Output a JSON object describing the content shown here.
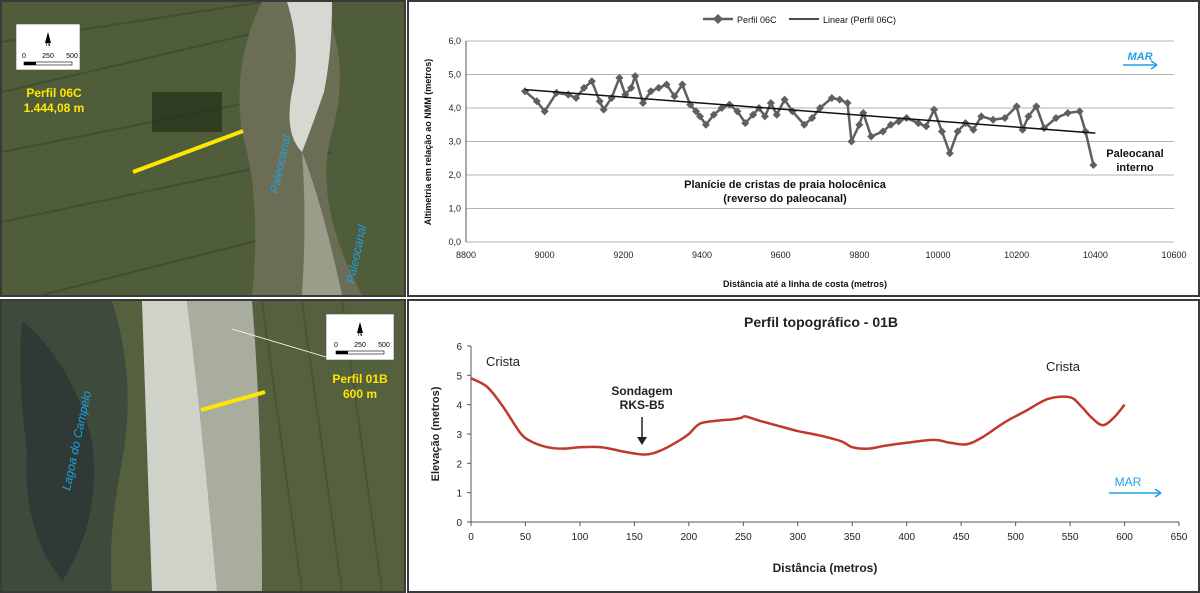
{
  "maps": {
    "top": {
      "scale": {
        "north": "N",
        "t0": "0",
        "t1": "250",
        "t2": "500"
      },
      "profile_label": "Perfil 06C",
      "profile_length": "1.444,08 m",
      "water_labels": [
        "Paleocanal",
        "Paleocanal"
      ]
    },
    "bottom": {
      "scale": {
        "north": "N",
        "t0": "0",
        "t1": "250",
        "t2": "500"
      },
      "profile_label": "Perfil 01B",
      "profile_length": "600 m",
      "water_labels": [
        "Lagoa do Campelo"
      ]
    }
  },
  "colors": {
    "profile_top_line": "#5f5f5f",
    "trend_line": "#111111",
    "profile_bot_line": "#c0392b",
    "mar_arrow": "#1ea0e6",
    "label_yellow": "#ffe600"
  },
  "chart_data": [
    {
      "type": "line",
      "legend": [
        "Perfil 06C",
        "Linear (Perfil 06C)"
      ],
      "legend_position": "top",
      "xlabel": "Distância até a linha de costa (metros)",
      "ylabel": "Altimetria em relação ao NMM (metros)",
      "xlim": [
        8800,
        10600
      ],
      "ylim": [
        0,
        6
      ],
      "xticks": [
        "8800",
        "9000",
        "9200",
        "9400",
        "9600",
        "9800",
        "10000",
        "10200",
        "10400",
        "10600"
      ],
      "yticks": [
        "0,0",
        "1,0",
        "2,0",
        "3,0",
        "4,0",
        "5,0",
        "6,0"
      ],
      "grid": true,
      "series": [
        {
          "name": "Perfil 06C",
          "marker": "diamond",
          "x": [
            8950,
            8980,
            9000,
            9030,
            9060,
            9080,
            9100,
            9120,
            9140,
            9150,
            9170,
            9190,
            9205,
            9220,
            9230,
            9250,
            9270,
            9290,
            9310,
            9330,
            9350,
            9370,
            9385,
            9395,
            9410,
            9430,
            9450,
            9470,
            9490,
            9510,
            9530,
            9545,
            9560,
            9575,
            9590,
            9610,
            9630,
            9660,
            9680,
            9700,
            9730,
            9750,
            9770,
            9780,
            9800,
            9810,
            9830,
            9860,
            9880,
            9900,
            9920,
            9950,
            9970,
            9990,
            10010,
            10030,
            10050,
            10070,
            10090,
            10110,
            10140,
            10170,
            10200,
            10215,
            10230,
            10250,
            10270,
            10300,
            10330,
            10360,
            10375,
            10395
          ],
          "y": [
            4.5,
            4.2,
            3.9,
            4.45,
            4.4,
            4.3,
            4.6,
            4.8,
            4.2,
            3.95,
            4.3,
            4.9,
            4.4,
            4.6,
            4.95,
            4.15,
            4.5,
            4.6,
            4.7,
            4.35,
            4.7,
            4.1,
            3.9,
            3.75,
            3.5,
            3.8,
            4.0,
            4.1,
            3.9,
            3.55,
            3.8,
            4.0,
            3.75,
            4.15,
            3.8,
            4.25,
            3.9,
            3.5,
            3.7,
            4.0,
            4.3,
            4.25,
            4.15,
            3.0,
            3.5,
            3.85,
            3.15,
            3.3,
            3.5,
            3.6,
            3.7,
            3.55,
            3.45,
            3.95,
            3.3,
            2.65,
            3.3,
            3.55,
            3.35,
            3.75,
            3.65,
            3.7,
            4.05,
            3.35,
            3.75,
            4.05,
            3.4,
            3.7,
            3.85,
            3.9,
            3.3,
            2.3
          ]
        },
        {
          "name": "Linear (Perfil 06C)",
          "x": [
            8950,
            10400
          ],
          "y": [
            4.55,
            3.25
          ]
        }
      ],
      "annotations": [
        "Planície de cristas de praia holocênica",
        "(reverso do paleocanal)",
        "Paleocanal",
        "interno",
        "MAR"
      ]
    },
    {
      "type": "line",
      "title": "Perfil topográfico - 01B",
      "xlabel": "Distância (metros)",
      "ylabel": "Elevação (metros)",
      "xlim": [
        0,
        650
      ],
      "ylim": [
        0,
        6
      ],
      "xticks": [
        "0",
        "50",
        "100",
        "150",
        "200",
        "250",
        "300",
        "350",
        "400",
        "450",
        "500",
        "550",
        "600",
        "650"
      ],
      "yticks": [
        "0",
        "1",
        "2",
        "3",
        "4",
        "5",
        "6"
      ],
      "grid": false,
      "series": [
        {
          "x": [
            0,
            15,
            30,
            45,
            55,
            70,
            85,
            100,
            120,
            140,
            160,
            175,
            190,
            200,
            210,
            225,
            240,
            248,
            252,
            265,
            280,
            300,
            320,
            340,
            350,
            365,
            380,
            400,
            425,
            440,
            455,
            470,
            490,
            510,
            530,
            550,
            560,
            570,
            580,
            590,
            600
          ],
          "y": [
            4.9,
            4.6,
            3.9,
            3.05,
            2.75,
            2.55,
            2.5,
            2.55,
            2.55,
            2.4,
            2.3,
            2.45,
            2.75,
            3.0,
            3.35,
            3.45,
            3.5,
            3.55,
            3.6,
            3.45,
            3.3,
            3.1,
            2.95,
            2.75,
            2.55,
            2.5,
            2.6,
            2.7,
            2.8,
            2.7,
            2.65,
            2.9,
            3.4,
            3.8,
            4.2,
            4.25,
            3.95,
            3.55,
            3.3,
            3.55,
            4.0
          ]
        }
      ],
      "annotations": [
        "Crista",
        "Crista",
        "Sondagem",
        "RKS-B5",
        "MAR"
      ]
    }
  ]
}
